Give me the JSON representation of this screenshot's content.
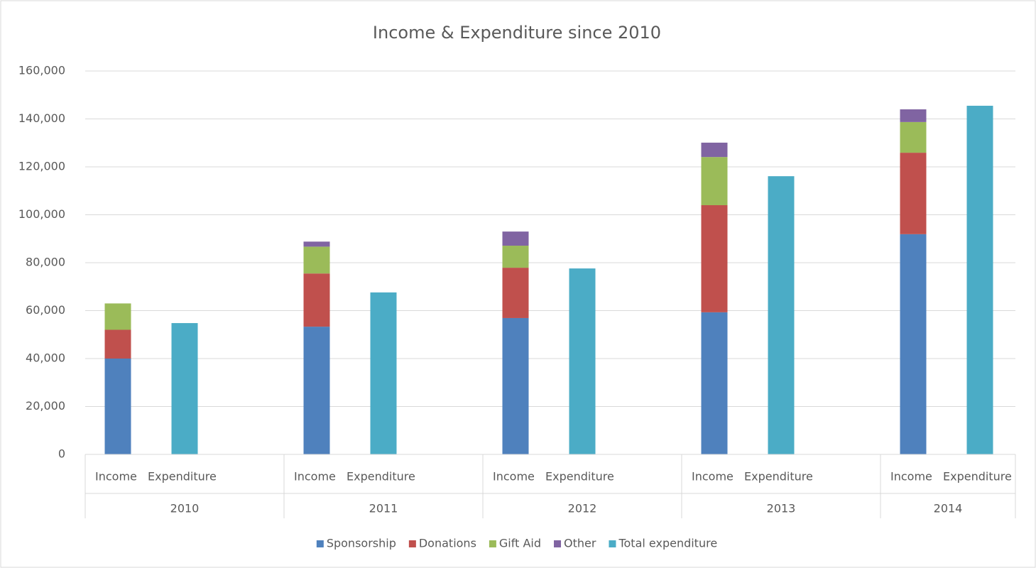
{
  "chart_data": {
    "type": "stacked-bar",
    "title": "Income & Expenditure since 2010",
    "categories": [
      "Income",
      "Expenditure",
      "Income",
      "Expenditure",
      "Income",
      "Expenditure",
      "Income",
      "Expenditure",
      "Income",
      "Expenditure"
    ],
    "groups": [
      "2010",
      "2011",
      "2012",
      "2013",
      "2014"
    ],
    "series": [
      {
        "name": "Sponsorship",
        "color": "#4f81bd",
        "values": [
          40000,
          null,
          53300,
          null,
          56900,
          null,
          59300,
          null,
          91900,
          null
        ]
      },
      {
        "name": "Donations",
        "color": "#c0504d",
        "values": [
          12000,
          null,
          22200,
          null,
          21000,
          null,
          44700,
          null,
          34000,
          null
        ]
      },
      {
        "name": "Gift Aid",
        "color": "#9bbb59",
        "values": [
          11000,
          null,
          11200,
          null,
          9200,
          null,
          20100,
          null,
          12800,
          null
        ]
      },
      {
        "name": "Other",
        "color": "#8064a2",
        "values": [
          0,
          null,
          2100,
          null,
          5900,
          null,
          6000,
          null,
          5300,
          null
        ]
      },
      {
        "name": "Total expenditure",
        "color": "#4bacc6",
        "values": [
          null,
          54800,
          null,
          67600,
          null,
          77600,
          null,
          116100,
          null,
          145500
        ]
      }
    ],
    "ylim": [
      0,
      160000
    ],
    "yticks": [
      0,
      {
        "value": 20000,
        "label": "20,000"
      },
      {
        "value": 40000,
        "label": "40,000"
      },
      {
        "value": 60000,
        "label": "60,000"
      },
      {
        "value": 80000,
        "label": "80,000"
      },
      {
        "value": 100000,
        "label": "100,000"
      },
      {
        "value": 120000,
        "label": "120,000"
      },
      {
        "value": 140000,
        "label": "140,000"
      },
      {
        "value": 160000,
        "label": "160,000"
      }
    ],
    "grid": true
  }
}
